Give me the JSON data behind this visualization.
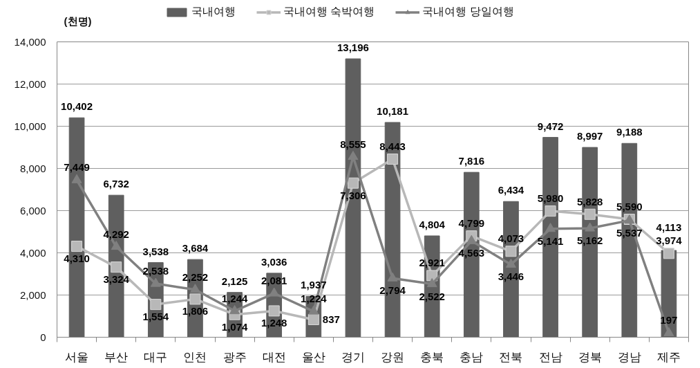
{
  "chart_data": {
    "type": "bar",
    "ylabel": "(천명)",
    "categories": [
      "서울",
      "부산",
      "대구",
      "인천",
      "광주",
      "대전",
      "울산",
      "경기",
      "강원",
      "충북",
      "충남",
      "전북",
      "전남",
      "경북",
      "경남",
      "제주"
    ],
    "series": [
      {
        "name": "국내여행",
        "color": "#5f5f5f",
        "values": [
          10402,
          6732,
          3538,
          3684,
          2125,
          3036,
          1937,
          13196,
          10181,
          4804,
          7816,
          6434,
          9472,
          8997,
          9188,
          4113
        ],
        "value_labels": [
          "10,402",
          "6,732",
          "3,538",
          "3,684",
          "2,125",
          "3,036",
          "1,937",
          "13,196",
          "10,181",
          "4,804",
          "7,816",
          "6,434",
          "9,472",
          "8,997",
          "9,188",
          "4,113"
        ]
      },
      {
        "name": "국내여행 숙박여행",
        "type": "line",
        "marker": "square",
        "color": "#b8b8b8",
        "values": [
          4310,
          3324,
          1554,
          1806,
          1074,
          1248,
          837,
          7306,
          8443,
          2921,
          4799,
          4073,
          5980,
          5828,
          5590,
          3974
        ],
        "value_labels": [
          "4,310",
          "3,324",
          "1,554",
          "1,806",
          "1,074",
          "1,248",
          "837",
          "7,306",
          "8,443",
          "2,921",
          "4,799",
          "4,073",
          "5,980",
          "5,828",
          "5,590",
          "3,974"
        ]
      },
      {
        "name": "국내여행 당일여행",
        "type": "line",
        "marker": "triangle",
        "color": "#808080",
        "values": [
          7449,
          4292,
          2538,
          2252,
          1244,
          2081,
          1224,
          8555,
          2794,
          2522,
          4563,
          3446,
          5141,
          5162,
          5537,
          197
        ],
        "value_labels": [
          "7,449",
          "4,292",
          "2,538",
          "2,252",
          "1,244",
          "2,081",
          "1,224",
          "8,555",
          "2,794",
          "2,522",
          "4,563",
          "3,446",
          "5,141",
          "5,162",
          "5,537",
          "197"
        ]
      }
    ],
    "ylim": [
      0,
      14000
    ],
    "yticks": [
      0,
      {
        "value": 2000,
        "label": "2,000"
      },
      {
        "value": 4000,
        "label": "4,000"
      },
      {
        "value": 6000,
        "label": "6,000"
      },
      {
        "value": 8000,
        "label": "8,000"
      },
      {
        "value": 10000,
        "label": "10,000"
      },
      {
        "value": 12000,
        "label": "12,000"
      },
      {
        "value": 14000,
        "label": "14,000"
      }
    ],
    "grid": "y",
    "legend": "top"
  }
}
